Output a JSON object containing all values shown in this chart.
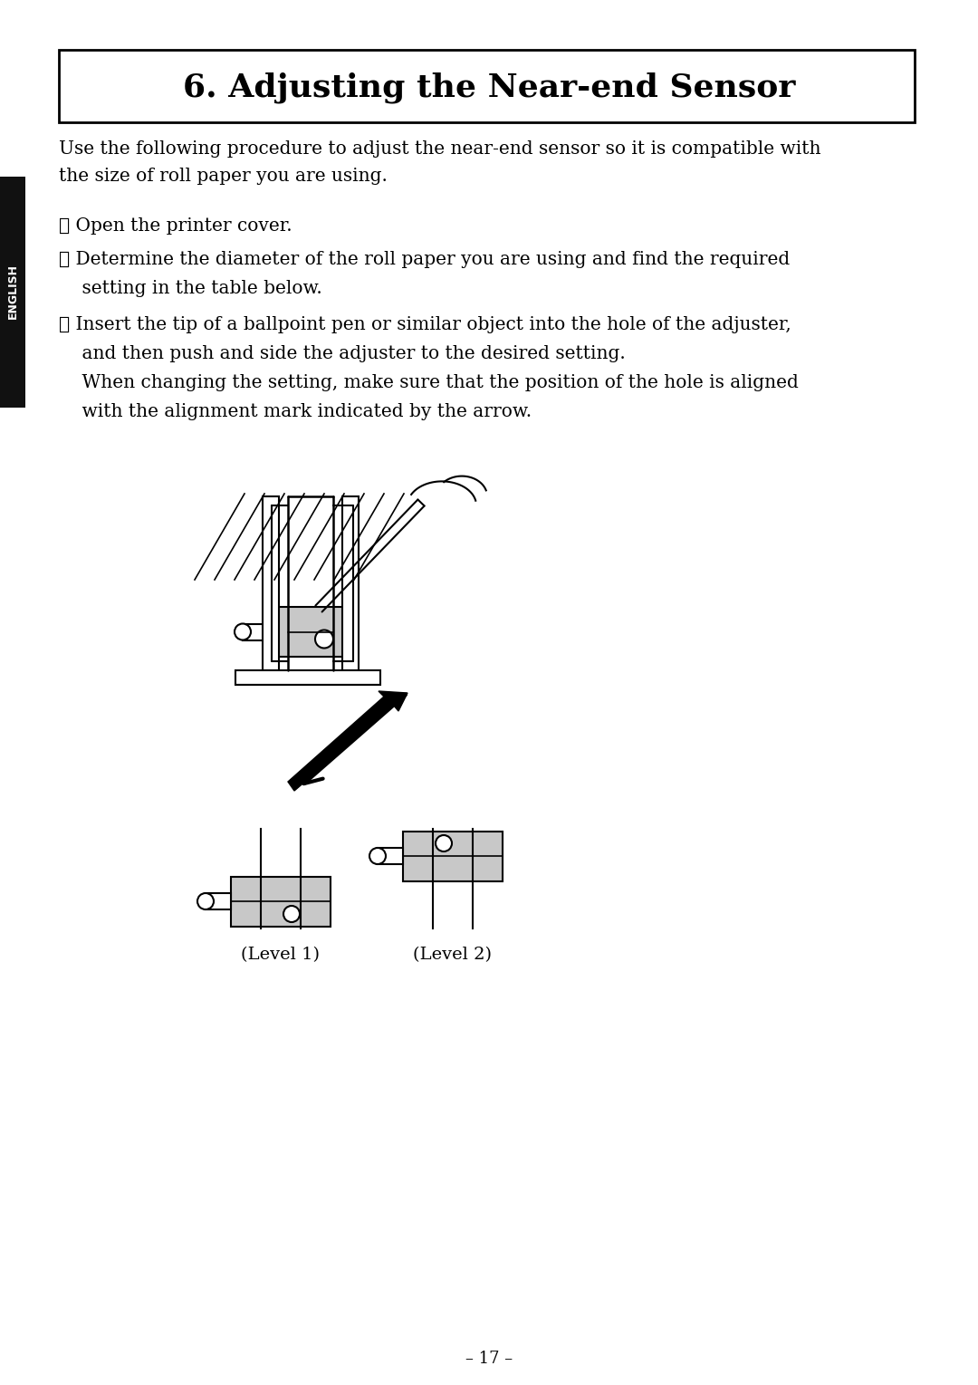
{
  "title": "6. Adjusting the Near-end Sensor",
  "bg_color": "#ffffff",
  "text_color": "#000000",
  "sidebar_color": "#111111",
  "sidebar_text": "ENGLISH",
  "intro_line1": "Use the following procedure to adjust the near-end sensor so it is compatible with",
  "intro_line2": "the size of roll paper you are using.",
  "step1": "① Open the printer cover.",
  "step2a": "② Determine the diameter of the roll paper you are using and find the required",
  "step2b": "    setting in the table below.",
  "step3a": "③ Insert the tip of a ballpoint pen or similar object into the hole of the adjuster,",
  "step3b": "    and then push and side the adjuster to the desired setting.",
  "step3c": "    When changing the setting, make sure that the position of the hole is aligned",
  "step3d": "    with the alignment mark indicated by the arrow.",
  "level1_label": "(Level 1)",
  "level2_label": "(Level 2)",
  "page_number": "– 17 –",
  "gray_light": "#c8c8c8",
  "gray_dark": "#888888"
}
